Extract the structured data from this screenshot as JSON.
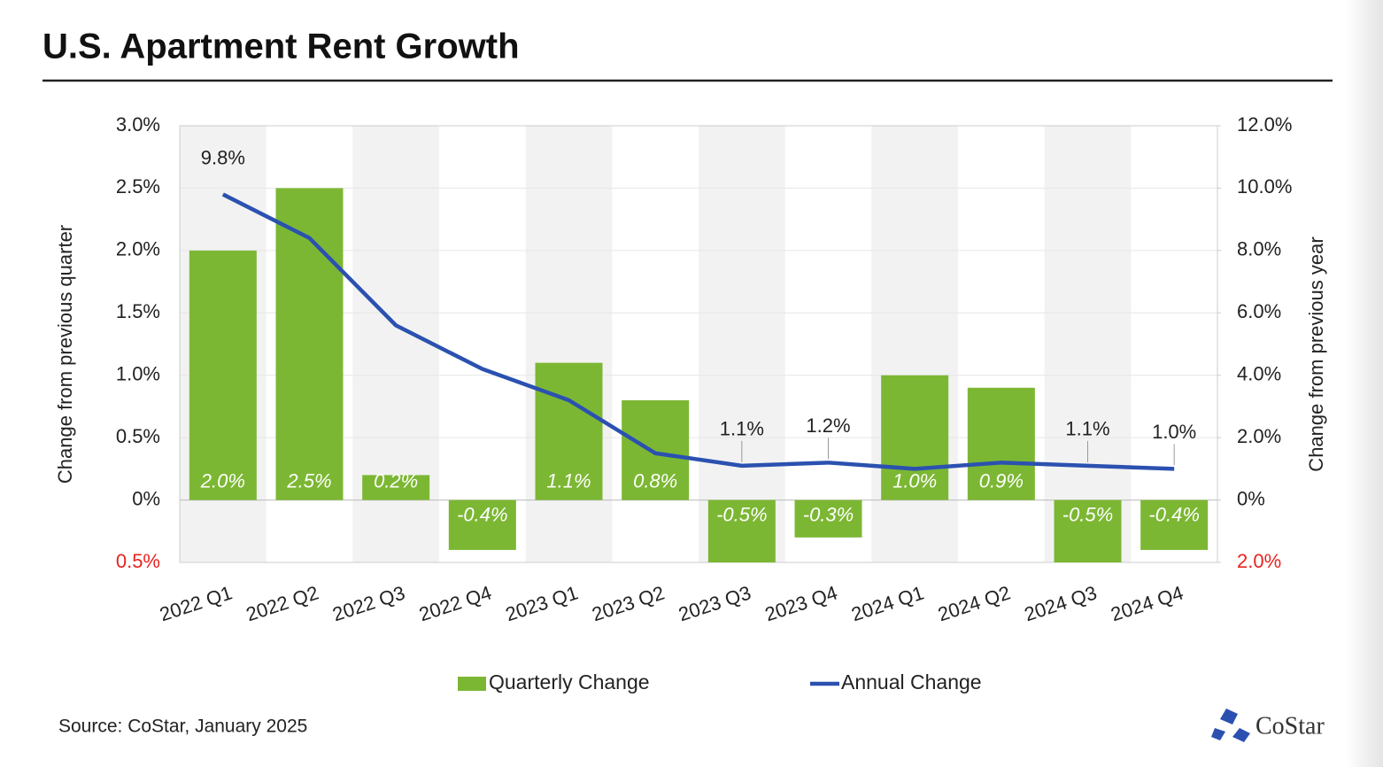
{
  "chart_data": {
    "type": "combo",
    "title": "U.S. Apartment Rent Growth",
    "y_label": "Change from previous quarter",
    "y2_label": "Change from previous year",
    "source": "Source: CoStar, January 2025",
    "logo": "CoStar",
    "categories": [
      "2022 Q1",
      "2022 Q2",
      "2022 Q3",
      "2022 Q4",
      "2023 Q1",
      "2023 Q2",
      "2023 Q3",
      "2023 Q4",
      "2024 Q1",
      "2024 Q2",
      "2024 Q3",
      "2024 Q4"
    ],
    "series": [
      {
        "name": "Quarterly Change",
        "type": "bar",
        "color": "#7cb733",
        "values": [
          2.0,
          2.5,
          0.2,
          -0.4,
          1.1,
          0.8,
          -0.5,
          -0.3,
          1.0,
          0.9,
          -0.5,
          -0.4
        ],
        "value_labels": [
          "2.0%",
          "2.5%",
          "0.2%",
          "-0.4%",
          "1.1%",
          "0.8%",
          "-0.5%",
          "-0.3%",
          "1.0%",
          "0.9%",
          "-0.5%",
          "-0.4%"
        ]
      },
      {
        "name": "Annual Change",
        "type": "line",
        "axis": "y2",
        "color": "#2b51b0",
        "values": [
          9.8,
          8.4,
          5.6,
          4.2,
          3.2,
          1.5,
          1.1,
          1.2,
          1.0,
          1.2,
          1.1,
          1.0
        ],
        "value_labels": [
          "9.8%",
          null,
          null,
          null,
          null,
          null,
          "1.1%",
          "1.2%",
          null,
          null,
          "1.1%",
          "1.0%"
        ]
      }
    ],
    "ylim": [
      -0.5,
      3.0
    ],
    "yticks": [
      {
        "value": -0.5,
        "label": "0.5%"
      },
      {
        "value": 0,
        "label": "0%"
      },
      {
        "value": 0.5,
        "label": "0.5%"
      },
      {
        "value": 1.0,
        "label": "1.0%"
      },
      {
        "value": 1.5,
        "label": "1.5%"
      },
      {
        "value": 2.0,
        "label": "2.0%"
      },
      {
        "value": 2.5,
        "label": "2.5%"
      },
      {
        "value": 3.0,
        "label": "3.0%"
      }
    ],
    "y2lim": [
      -2.0,
      12.0
    ],
    "y2ticks": [
      {
        "value": -2.0,
        "label": "2.0%"
      },
      {
        "value": 0,
        "label": "0%"
      },
      {
        "value": 2.0,
        "label": "2.0%"
      },
      {
        "value": 4.0,
        "label": "4.0%"
      },
      {
        "value": 6.0,
        "label": "6.0%"
      },
      {
        "value": 8.0,
        "label": "8.0%"
      },
      {
        "value": 10.0,
        "label": "10.0%"
      },
      {
        "value": 12.0,
        "label": "12.0%"
      }
    ],
    "negative_tick_color": "#e8231f",
    "band_color": "#f2f2f2",
    "grid": true,
    "legend": "bottom"
  }
}
